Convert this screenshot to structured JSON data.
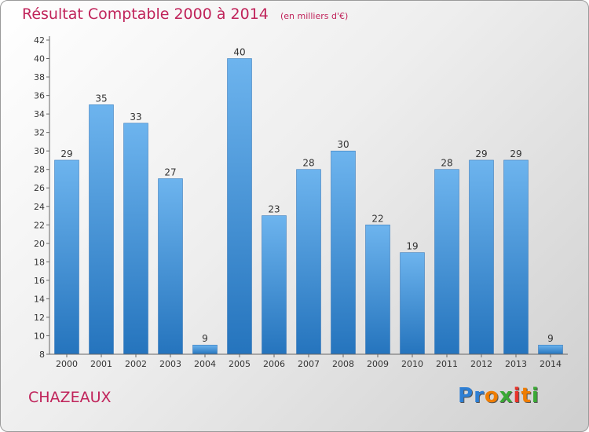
{
  "header": {
    "title": "Résultat Comptable 2000 à 2014",
    "unit": "(en milliers d'€)"
  },
  "footer": {
    "commune": "CHAZEAUX",
    "logo_letters": [
      {
        "ch": "P",
        "color": "#2e7fd4"
      },
      {
        "ch": "r",
        "color": "#2e7fd4"
      },
      {
        "ch": "o",
        "color": "#ef7d00"
      },
      {
        "ch": "x",
        "color": "#3aa935"
      },
      {
        "ch": "i",
        "color": "#e8332a"
      },
      {
        "ch": "t",
        "color": "#ef7d00"
      },
      {
        "ch": "i",
        "color": "#3aa935"
      }
    ]
  },
  "chart_data": {
    "type": "bar",
    "categories": [
      "2000",
      "2001",
      "2002",
      "2003",
      "2004",
      "2005",
      "2006",
      "2007",
      "2008",
      "2009",
      "2010",
      "2011",
      "2012",
      "2013",
      "2014"
    ],
    "values": [
      29,
      35,
      33,
      27,
      9,
      40,
      23,
      28,
      30,
      22,
      19,
      28,
      29,
      29,
      9
    ],
    "title": "Résultat Comptable 2000 à 2014",
    "xlabel": "",
    "ylabel": "",
    "ylim": [
      8,
      42
    ],
    "yticks": [
      8,
      10,
      12,
      14,
      16,
      18,
      20,
      22,
      24,
      26,
      28,
      30,
      32,
      34,
      36,
      38,
      40,
      42
    ],
    "grid": false,
    "colors": {
      "bar_light": "#6db4ee",
      "bar_dark": "#2574bd",
      "label": "#333333",
      "axis": "#666666"
    }
  }
}
